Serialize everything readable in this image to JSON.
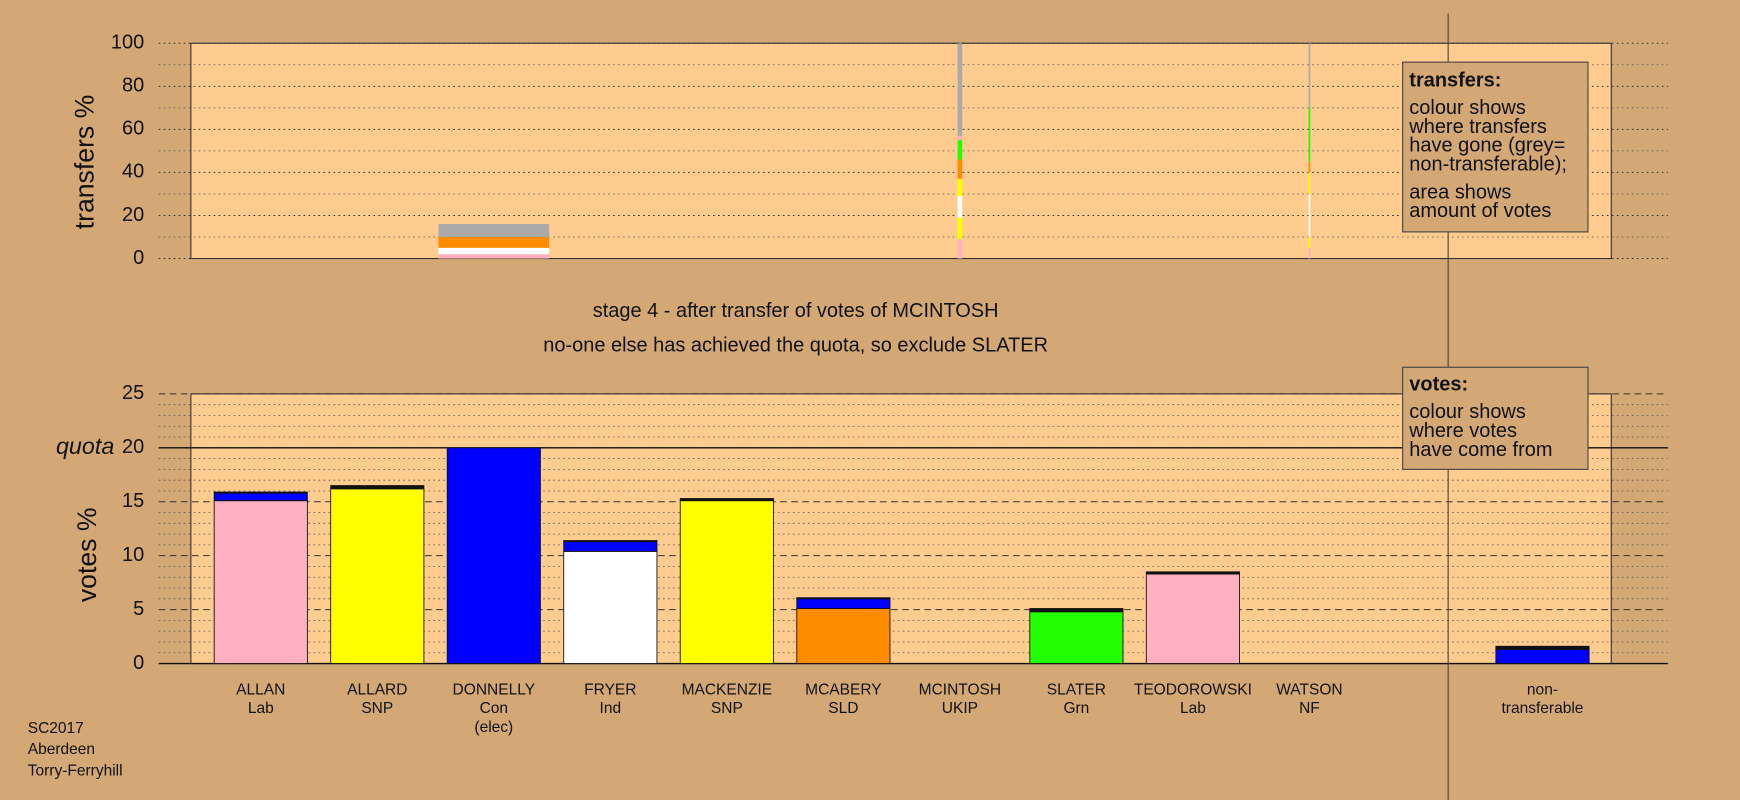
{
  "chart_data": [
    {
      "type": "bar",
      "stacked": true,
      "ylabel": "transfers %",
      "ylim": [
        0,
        100
      ],
      "yticks": [
        0,
        20,
        40,
        60,
        80,
        100
      ],
      "minor_yticks": [
        10,
        30,
        50,
        70,
        90
      ],
      "grid": true,
      "widths": [
        null,
        null,
        0.95,
        null,
        null,
        null,
        0.04,
        null,
        null,
        0.015,
        null
      ],
      "series": [
        {
          "color": "#ffb0c0",
          "values": [
            null,
            null,
            2,
            null,
            null,
            null,
            9,
            null,
            null,
            5,
            null
          ]
        },
        {
          "color": "#ffff00",
          "values": [
            null,
            null,
            0,
            null,
            null,
            null,
            10,
            null,
            null,
            5,
            null
          ]
        },
        {
          "color": "#ffffff",
          "values": [
            null,
            null,
            3,
            null,
            null,
            null,
            10,
            null,
            null,
            20,
            null
          ]
        },
        {
          "color": "#ffff00",
          "values": [
            null,
            null,
            0,
            null,
            null,
            null,
            8,
            null,
            null,
            10,
            null
          ]
        },
        {
          "color": "#ff8c00",
          "values": [
            null,
            null,
            5,
            null,
            null,
            null,
            9,
            null,
            null,
            5,
            null
          ]
        },
        {
          "color": "#22ff00",
          "values": [
            null,
            null,
            0,
            null,
            null,
            null,
            9,
            null,
            null,
            25,
            null
          ]
        },
        {
          "color": "#ffb0c0",
          "values": [
            null,
            null,
            0,
            null,
            null,
            null,
            2,
            null,
            null,
            0,
            null
          ]
        },
        {
          "color": "#aaaaaa",
          "values": [
            null,
            null,
            6,
            null,
            null,
            null,
            43,
            null,
            null,
            30,
            null
          ]
        }
      ],
      "annotation": {
        "title": "transfers:",
        "paragraphs": [
          [
            "colour shows",
            "where transfers",
            "have gone (grey=",
            "non-transferable);"
          ],
          [
            "area shows",
            "amount of votes"
          ]
        ]
      }
    },
    {
      "type": "bar",
      "stacked": true,
      "title": "stage 4 - after transfer of votes of MCINTOSH",
      "subtitle": "no-one else has achieved the quota, so exclude SLATER",
      "ylabel": "votes %",
      "ylim": [
        0,
        25
      ],
      "yticks": [
        0,
        5,
        10,
        15,
        20,
        25
      ],
      "minor_yticks": [
        1,
        2,
        3,
        4,
        6,
        7,
        8,
        9,
        11,
        12,
        13,
        14,
        16,
        17,
        18,
        19,
        21,
        22,
        23,
        24
      ],
      "grid": true,
      "quota": {
        "value": 20,
        "label": "quota"
      },
      "categories": [
        [
          "ALLAN",
          "Lab"
        ],
        [
          "ALLARD",
          "SNP"
        ],
        [
          "DONNELLY",
          "Con",
          "(elec)"
        ],
        [
          "FRYER",
          "Ind"
        ],
        [
          "MACKENZIE",
          "SNP"
        ],
        [
          "MCABERY",
          "SLD"
        ],
        [
          "MCINTOSH",
          "UKIP"
        ],
        [
          "SLATER",
          "Grn"
        ],
        [
          "TEODOROWSKI",
          "Lab"
        ],
        [
          "WATSON",
          "NF"
        ],
        [
          "non-",
          "transferable"
        ]
      ],
      "series": [
        {
          "colors": [
            "#ffb0c0",
            "#ffff00",
            "#0000ff",
            "#ffffff",
            "#ffff00",
            "#ff8c00",
            "#aaaaaa",
            "#22ff00",
            "#ffb0c0",
            "#aaaaaa",
            "#0000ff"
          ],
          "values": [
            15.1,
            16.2,
            20,
            10.4,
            15.1,
            5.1,
            0,
            4.8,
            8.3,
            0,
            1.3
          ]
        },
        {
          "color": "#0000ff",
          "values": [
            0.7,
            0,
            0,
            0.9,
            0,
            0.9,
            0,
            0,
            0,
            0,
            0
          ]
        },
        {
          "color": "#111111",
          "values": [
            0.1,
            0.3,
            0,
            0.1,
            0.2,
            0.1,
            0,
            0.3,
            0.2,
            0,
            0.3
          ]
        }
      ],
      "annotation": {
        "title": "votes:",
        "paragraphs": [
          [
            "colour shows",
            "where votes",
            "have come from"
          ]
        ]
      }
    }
  ],
  "footer": [
    "SC2017",
    "Aberdeen",
    "Torry-Ferryhill"
  ]
}
